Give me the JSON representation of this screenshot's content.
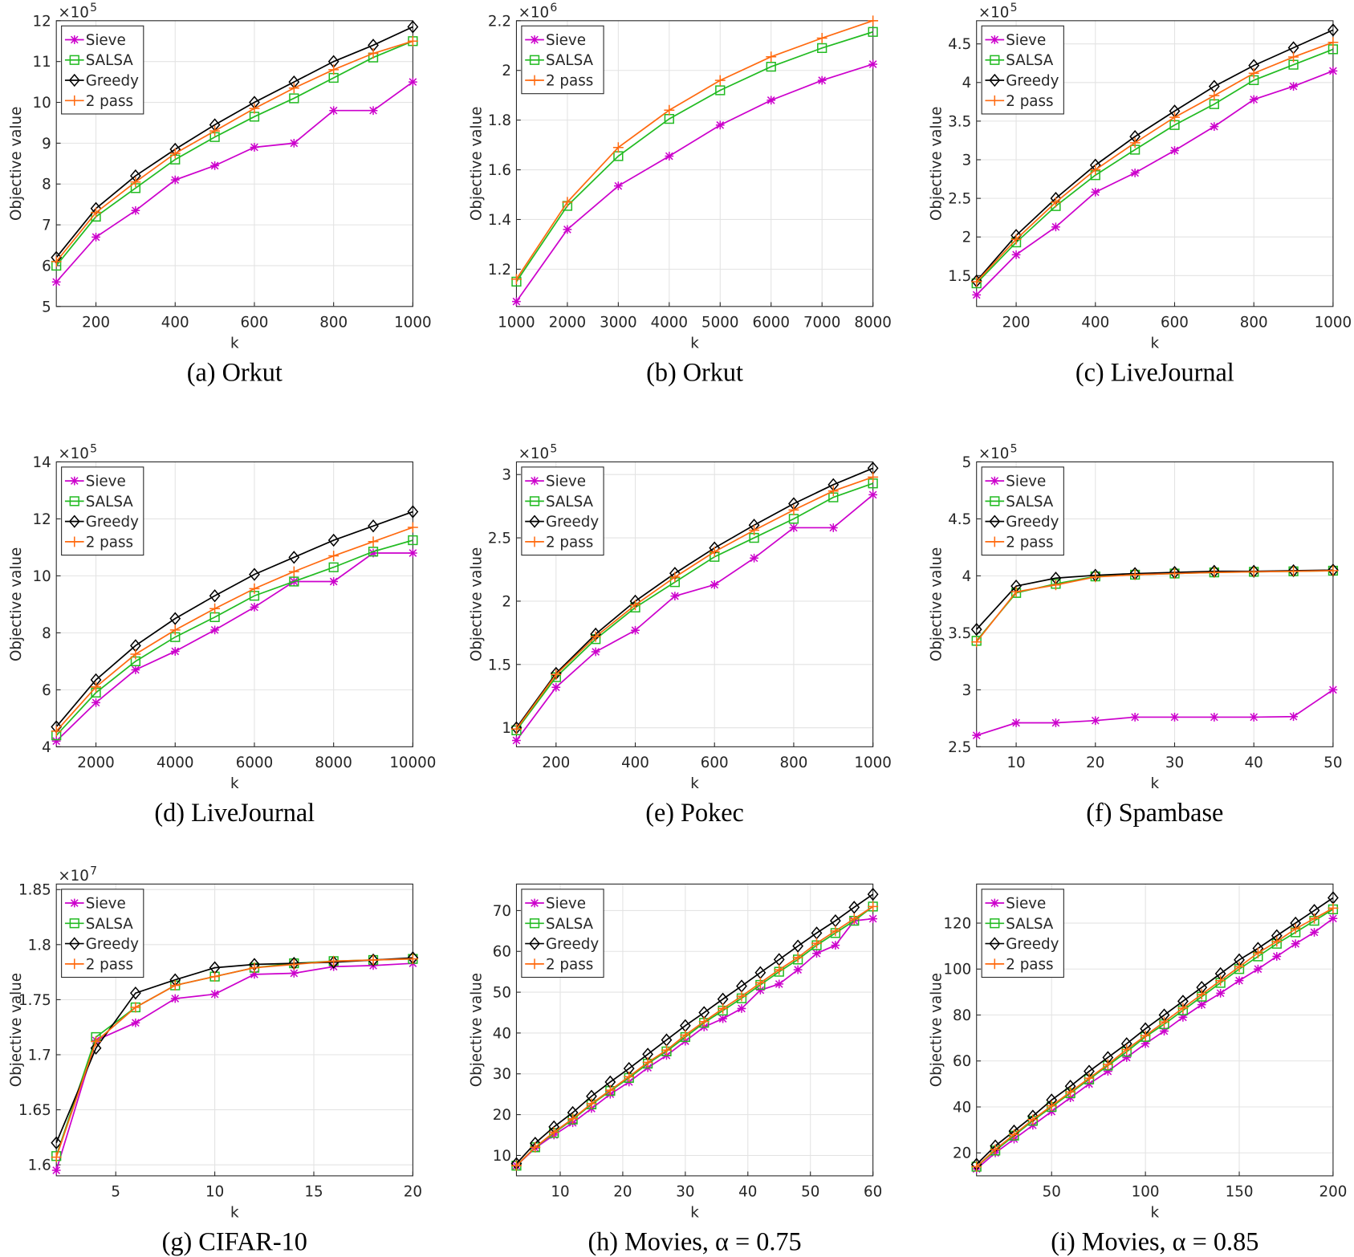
{
  "chart_data": [
    {
      "type": "line",
      "title": "(a) Orkut",
      "xlabel": "k",
      "ylabel": "Objective value",
      "y_multiplier_base": "×10",
      "y_multiplier_exponent": "5",
      "x": [
        100,
        200,
        300,
        400,
        500,
        600,
        700,
        800,
        900,
        1000
      ],
      "xlim": [
        100,
        1000
      ],
      "xticks": [
        200,
        400,
        600,
        800,
        1000
      ],
      "ylim": [
        5,
        12
      ],
      "yticks": [
        5,
        6,
        7,
        8,
        9,
        10,
        11,
        12
      ],
      "grid": true,
      "legend": "upper left",
      "series": [
        {
          "name": "Sieve",
          "color": "#cc00cc",
          "marker": "*",
          "values": [
            5.6,
            6.7,
            7.35,
            8.1,
            8.45,
            8.9,
            9.0,
            9.8,
            9.8,
            10.5
          ]
        },
        {
          "name": "SALSA",
          "color": "#22bb22",
          "marker": "s",
          "values": [
            6.0,
            7.2,
            7.9,
            8.6,
            9.15,
            9.65,
            10.1,
            10.6,
            11.1,
            11.5
          ]
        },
        {
          "name": "Greedy",
          "color": "#000000",
          "marker": "d",
          "values": [
            6.2,
            7.4,
            8.2,
            8.85,
            9.45,
            10.0,
            10.5,
            11.0,
            11.4,
            11.85
          ]
        },
        {
          "name": "2 pass",
          "color": "#ff6a10",
          "marker": "+",
          "values": [
            6.1,
            7.3,
            8.05,
            8.75,
            9.3,
            9.85,
            10.35,
            10.8,
            11.2,
            11.5
          ]
        }
      ]
    },
    {
      "type": "line",
      "title": "(b) Orkut",
      "xlabel": "k",
      "ylabel": "Objective value",
      "y_multiplier_base": "×10",
      "y_multiplier_exponent": "6",
      "x": [
        1000,
        2000,
        3000,
        4000,
        5000,
        6000,
        7000,
        8000
      ],
      "xlim": [
        1000,
        8000
      ],
      "xticks": [
        1000,
        2000,
        3000,
        4000,
        5000,
        6000,
        7000,
        8000
      ],
      "ylim": [
        1.05,
        2.2
      ],
      "yticks": [
        1.2,
        1.4,
        1.6,
        1.8,
        2,
        2.2
      ],
      "grid": true,
      "legend": "upper left",
      "series": [
        {
          "name": "Sieve",
          "color": "#cc00cc",
          "marker": "*",
          "values": [
            1.07,
            1.36,
            1.535,
            1.655,
            1.78,
            1.88,
            1.96,
            2.025
          ]
        },
        {
          "name": "SALSA",
          "color": "#22bb22",
          "marker": "s",
          "values": [
            1.15,
            1.455,
            1.655,
            1.805,
            1.92,
            2.015,
            2.09,
            2.155
          ]
        },
        {
          "name": "2 pass",
          "color": "#ff6a10",
          "marker": "+",
          "values": [
            1.16,
            1.47,
            1.69,
            1.84,
            1.96,
            2.055,
            2.13,
            2.2
          ]
        }
      ]
    },
    {
      "type": "line",
      "title": "(c) LiveJournal",
      "xlabel": "k",
      "ylabel": "Objective value",
      "y_multiplier_base": "×10",
      "y_multiplier_exponent": "5",
      "x": [
        100,
        200,
        300,
        400,
        500,
        600,
        700,
        800,
        900,
        1000
      ],
      "xlim": [
        100,
        1000
      ],
      "xticks": [
        200,
        400,
        600,
        800,
        1000
      ],
      "ylim": [
        1.1,
        4.8
      ],
      "yticks": [
        1.5,
        2,
        2.5,
        3,
        3.5,
        4,
        4.5
      ],
      "grid": true,
      "legend": "upper left",
      "series": [
        {
          "name": "Sieve",
          "color": "#cc00cc",
          "marker": "*",
          "values": [
            1.25,
            1.77,
            2.13,
            2.58,
            2.83,
            3.12,
            3.43,
            3.78,
            3.95,
            4.15
          ]
        },
        {
          "name": "SALSA",
          "color": "#22bb22",
          "marker": "s",
          "values": [
            1.4,
            1.93,
            2.4,
            2.8,
            3.13,
            3.45,
            3.72,
            4.03,
            4.23,
            4.43
          ]
        },
        {
          "name": "Greedy",
          "color": "#000000",
          "marker": "d",
          "values": [
            1.43,
            2.02,
            2.5,
            2.93,
            3.3,
            3.63,
            3.95,
            4.22,
            4.45,
            4.68
          ]
        },
        {
          "name": "2 pass",
          "color": "#ff6a10",
          "marker": "+",
          "values": [
            1.42,
            1.97,
            2.45,
            2.87,
            3.22,
            3.55,
            3.83,
            4.12,
            4.33,
            4.52
          ]
        }
      ]
    },
    {
      "type": "line",
      "title": "(d) LiveJournal",
      "xlabel": "k",
      "ylabel": "Objective value",
      "y_multiplier_base": "×10",
      "y_multiplier_exponent": "5",
      "x": [
        1000,
        2000,
        3000,
        4000,
        5000,
        6000,
        7000,
        8000,
        9000,
        10000
      ],
      "xlim": [
        1000,
        10000
      ],
      "xticks": [
        2000,
        4000,
        6000,
        8000,
        10000
      ],
      "ylim": [
        4,
        14
      ],
      "yticks": [
        4,
        6,
        8,
        10,
        12,
        14
      ],
      "grid": true,
      "legend": "upper left",
      "series": [
        {
          "name": "Sieve",
          "color": "#cc00cc",
          "marker": "*",
          "values": [
            4.2,
            5.55,
            6.7,
            7.35,
            8.1,
            8.9,
            9.8,
            9.8,
            10.8,
            10.8
          ]
        },
        {
          "name": "SALSA",
          "color": "#22bb22",
          "marker": "s",
          "values": [
            4.4,
            5.9,
            7.0,
            7.85,
            8.55,
            9.3,
            9.8,
            10.3,
            10.85,
            11.25
          ]
        },
        {
          "name": "Greedy",
          "color": "#000000",
          "marker": "d",
          "values": [
            4.7,
            6.35,
            7.55,
            8.5,
            9.3,
            10.05,
            10.65,
            11.25,
            11.75,
            12.25
          ]
        },
        {
          "name": "2 pass",
          "color": "#ff6a10",
          "marker": "+",
          "values": [
            4.55,
            6.1,
            7.25,
            8.1,
            8.85,
            9.55,
            10.15,
            10.7,
            11.2,
            11.7
          ]
        }
      ]
    },
    {
      "type": "line",
      "title": "(e) Pokec",
      "xlabel": "k",
      "ylabel": "Objective value",
      "y_multiplier_base": "×10",
      "y_multiplier_exponent": "5",
      "x": [
        100,
        200,
        300,
        400,
        500,
        600,
        700,
        800,
        900,
        1000
      ],
      "xlim": [
        100,
        1000
      ],
      "xticks": [
        200,
        400,
        600,
        800,
        1000
      ],
      "ylim": [
        0.85,
        3.1
      ],
      "yticks": [
        1,
        1.5,
        2,
        2.5,
        3
      ],
      "grid": true,
      "legend": "upper left",
      "series": [
        {
          "name": "Sieve",
          "color": "#cc00cc",
          "marker": "*",
          "values": [
            0.9,
            1.32,
            1.6,
            1.77,
            2.04,
            2.13,
            2.34,
            2.58,
            2.58,
            2.84
          ]
        },
        {
          "name": "SALSA",
          "color": "#22bb22",
          "marker": "s",
          "values": [
            0.98,
            1.4,
            1.7,
            1.95,
            2.15,
            2.35,
            2.5,
            2.65,
            2.82,
            2.93
          ]
        },
        {
          "name": "Greedy",
          "color": "#000000",
          "marker": "d",
          "values": [
            1.0,
            1.43,
            1.74,
            2.0,
            2.22,
            2.42,
            2.6,
            2.77,
            2.92,
            3.05
          ]
        },
        {
          "name": "2 pass",
          "color": "#ff6a10",
          "marker": "+",
          "values": [
            0.99,
            1.42,
            1.72,
            1.97,
            2.19,
            2.39,
            2.56,
            2.72,
            2.87,
            2.98
          ]
        }
      ]
    },
    {
      "type": "line",
      "title": "(f) Spambase",
      "xlabel": "k",
      "ylabel": "Objective value",
      "y_multiplier_base": "×10",
      "y_multiplier_exponent": "5",
      "x": [
        5,
        10,
        15,
        20,
        25,
        30,
        35,
        40,
        45,
        50
      ],
      "xlim": [
        5,
        50
      ],
      "xticks": [
        10,
        20,
        30,
        40,
        50
      ],
      "ylim": [
        2.5,
        5
      ],
      "yticks": [
        2.5,
        3,
        3.5,
        4,
        4.5,
        5
      ],
      "grid": true,
      "legend": "upper left",
      "series": [
        {
          "name": "Sieve",
          "color": "#cc00cc",
          "marker": "*",
          "values": [
            2.6,
            2.71,
            2.71,
            2.73,
            2.76,
            2.76,
            2.76,
            2.76,
            2.765,
            3.0
          ]
        },
        {
          "name": "SALSA",
          "color": "#22bb22",
          "marker": "s",
          "values": [
            3.43,
            3.85,
            3.93,
            3.995,
            4.01,
            4.02,
            4.03,
            4.035,
            4.04,
            4.045
          ]
        },
        {
          "name": "Greedy",
          "color": "#000000",
          "marker": "d",
          "values": [
            3.53,
            3.91,
            3.98,
            4.005,
            4.02,
            4.03,
            4.04,
            4.04,
            4.045,
            4.05
          ]
        },
        {
          "name": "2 pass",
          "color": "#ff6a10",
          "marker": "+",
          "values": [
            3.42,
            3.86,
            3.92,
            3.99,
            4.01,
            4.02,
            4.03,
            4.035,
            4.04,
            4.045
          ]
        }
      ]
    },
    {
      "type": "line",
      "title": "(g) CIFAR-10",
      "xlabel": "k",
      "ylabel": "Objective value",
      "y_multiplier_base": "×10",
      "y_multiplier_exponent": "7",
      "x": [
        2,
        4,
        6,
        8,
        10,
        12,
        14,
        16,
        18,
        20
      ],
      "xlim": [
        2,
        20
      ],
      "xticks": [
        5,
        10,
        15,
        20
      ],
      "ylim": [
        1.59,
        1.855
      ],
      "yticks": [
        1.6,
        1.65,
        1.7,
        1.75,
        1.8,
        1.85
      ],
      "grid": true,
      "legend": "upper left",
      "series": [
        {
          "name": "Sieve",
          "color": "#cc00cc",
          "marker": "*",
          "values": [
            1.595,
            1.713,
            1.729,
            1.751,
            1.755,
            1.773,
            1.774,
            1.78,
            1.781,
            1.783
          ]
        },
        {
          "name": "SALSA",
          "color": "#22bb22",
          "marker": "s",
          "values": [
            1.608,
            1.716,
            1.743,
            1.763,
            1.771,
            1.779,
            1.783,
            1.785,
            1.786,
            1.787
          ]
        },
        {
          "name": "Greedy",
          "color": "#000000",
          "marker": "d",
          "values": [
            1.62,
            1.706,
            1.756,
            1.768,
            1.779,
            1.782,
            1.783,
            1.784,
            1.786,
            1.788
          ]
        },
        {
          "name": "2 pass",
          "color": "#ff6a10",
          "marker": "+",
          "values": [
            1.607,
            1.712,
            1.743,
            1.763,
            1.771,
            1.779,
            1.782,
            1.785,
            1.786,
            1.787
          ]
        }
      ]
    },
    {
      "type": "line",
      "title": "(h) Movies, α = 0.75",
      "xlabel": "k",
      "ylabel": "Objective value",
      "x": [
        3,
        6,
        9,
        12,
        15,
        18,
        21,
        24,
        27,
        30,
        33,
        36,
        39,
        42,
        45,
        48,
        51,
        54,
        57,
        60
      ],
      "xlim": [
        3,
        60
      ],
      "xticks": [
        10,
        20,
        30,
        40,
        50,
        60
      ],
      "ylim": [
        5,
        76.5
      ],
      "yticks": [
        10,
        20,
        30,
        40,
        50,
        60,
        70
      ],
      "grid": true,
      "legend": "upper left",
      "series": [
        {
          "name": "Sieve",
          "color": "#cc00cc",
          "marker": "*",
          "values": [
            7.5,
            11.8,
            15,
            18,
            21.5,
            25,
            28,
            31.5,
            34.5,
            38,
            41.5,
            43.5,
            46,
            50.5,
            52,
            55.5,
            59.5,
            61.5,
            67.5,
            68
          ]
        },
        {
          "name": "SALSA",
          "color": "#22bb22",
          "marker": "s",
          "values": [
            7.5,
            12,
            15.5,
            18.8,
            22.5,
            25.8,
            29,
            32.5,
            35.5,
            39,
            42.5,
            45.5,
            48.5,
            51.8,
            55,
            58,
            61.5,
            64.5,
            67.5,
            71
          ]
        },
        {
          "name": "Greedy",
          "color": "#000000",
          "marker": "d",
          "values": [
            8,
            13,
            17,
            20.5,
            24.5,
            28,
            31.3,
            34.8,
            38.3,
            41.8,
            45,
            48.3,
            51.5,
            54.8,
            58,
            61.3,
            64.5,
            67.5,
            70.8,
            74
          ]
        },
        {
          "name": "2 pass",
          "color": "#ff6a10",
          "marker": "+",
          "values": [
            7.5,
            12,
            15.7,
            19,
            22.7,
            26,
            29.3,
            32.8,
            35.8,
            39.5,
            42.8,
            46,
            49,
            52.3,
            55.5,
            58.5,
            62,
            65,
            68,
            71
          ]
        }
      ]
    },
    {
      "type": "line",
      "title": "(i) Movies, α = 0.85",
      "xlabel": "k",
      "ylabel": "Objective value",
      "x": [
        10,
        20,
        30,
        40,
        50,
        60,
        70,
        80,
        90,
        100,
        110,
        120,
        130,
        140,
        150,
        160,
        170,
        180,
        190,
        200
      ],
      "xlim": [
        10,
        200
      ],
      "xticks": [
        50,
        100,
        150,
        200
      ],
      "ylim": [
        10,
        137
      ],
      "yticks": [
        20,
        40,
        60,
        80,
        100,
        120
      ],
      "grid": true,
      "legend": "upper left",
      "series": [
        {
          "name": "Sieve",
          "color": "#cc00cc",
          "marker": "*",
          "values": [
            13,
            20,
            26,
            32,
            38,
            44,
            50,
            55.5,
            61.5,
            67.5,
            73,
            79,
            84.5,
            89.5,
            95,
            100,
            105.5,
            111,
            116,
            122
          ]
        },
        {
          "name": "SALSA",
          "color": "#22bb22",
          "marker": "s",
          "values": [
            14,
            21,
            27.5,
            34,
            40,
            46,
            52,
            58,
            64,
            70.5,
            76,
            82,
            88,
            94,
            100,
            105.5,
            111,
            116,
            121,
            126
          ]
        },
        {
          "name": "Greedy",
          "color": "#000000",
          "marker": "d",
          "values": [
            15,
            23,
            29.5,
            36,
            43,
            49,
            55.5,
            61.5,
            67.5,
            74,
            80,
            86,
            92,
            98,
            104,
            109,
            114.5,
            120,
            125.5,
            131
          ]
        },
        {
          "name": "2 pass",
          "color": "#ff6a10",
          "marker": "+",
          "values": [
            14,
            21.5,
            28,
            34.5,
            40.5,
            46.5,
            52.5,
            58.5,
            65,
            71,
            77,
            83,
            89,
            95,
            101,
            107,
            112,
            117.5,
            122,
            126.5
          ]
        }
      ]
    }
  ]
}
